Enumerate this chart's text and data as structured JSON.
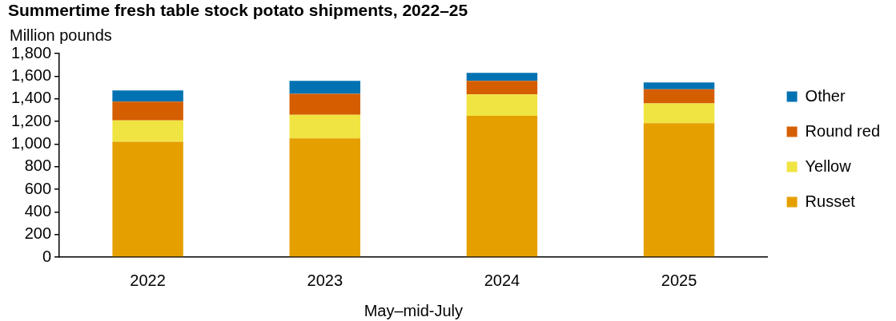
{
  "chart_data": {
    "type": "bar",
    "title": "Summertime fresh table stock potato shipments, 2022–25",
    "ylabel": "Million pounds",
    "xlabel": "May–mid-July",
    "categories": [
      "2022",
      "2023",
      "2024",
      "2025"
    ],
    "series": [
      {
        "name": "Russet",
        "color": "#e5a000",
        "values": [
          1020,
          1050,
          1250,
          1185
        ]
      },
      {
        "name": "Yellow",
        "color": "#f0e442",
        "values": [
          190,
          210,
          190,
          175
        ]
      },
      {
        "name": "Round red",
        "color": "#d55e00",
        "values": [
          165,
          185,
          120,
          125
        ]
      },
      {
        "name": "Other",
        "color": "#0072b2",
        "values": [
          100,
          115,
          70,
          60
        ]
      }
    ],
    "stacked": true,
    "ylim": [
      0,
      1800
    ],
    "yticks": [
      0,
      200,
      400,
      600,
      800,
      {
        "value": 1000,
        "label": "1,000"
      },
      {
        "value": 1200,
        "label": "1,200"
      },
      {
        "value": 1400,
        "label": "1,400"
      },
      {
        "value": 1600,
        "label": "1,600"
      },
      {
        "value": 1800,
        "label": "1,800"
      }
    ],
    "grid": false,
    "legend": "right"
  }
}
